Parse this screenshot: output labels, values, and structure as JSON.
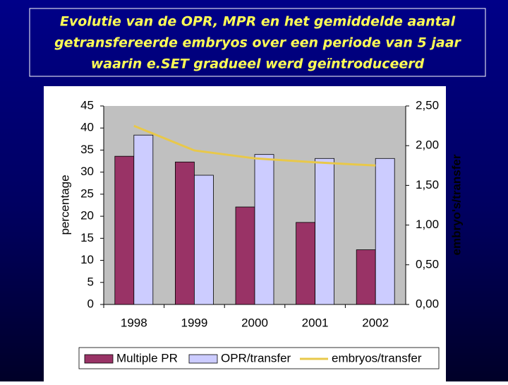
{
  "chart_data": {
    "type": "bar",
    "title": [
      "Evolutie van de OPR, MPR en het gemiddelde aantal",
      "getransfereerde embryos over een periode van 5 jaar",
      "waarin e.SET gradueel werd geïntroduceerd"
    ],
    "categories": [
      "1998",
      "1999",
      "2000",
      "2001",
      "2002"
    ],
    "series": [
      {
        "name": "Multiple PR",
        "color": "#993366",
        "values": [
          33.6,
          32.3,
          22.1,
          18.6,
          12.4
        ]
      },
      {
        "name": "OPR/transfer",
        "color": "#ccccff",
        "values": [
          38.4,
          29.3,
          34.0,
          33.1,
          33.1
        ]
      },
      {
        "name": "embryos/transfer",
        "color": "#e8c84a",
        "axis": "y2",
        "type": "line",
        "values": [
          2.25,
          1.94,
          1.84,
          1.79,
          1.75
        ]
      }
    ],
    "ylabel": "percentage",
    "y2label": "embryo's/transfer",
    "ylim": [
      0,
      45
    ],
    "yticks": [
      0,
      5,
      10,
      15,
      20,
      25,
      30,
      35,
      40,
      45
    ],
    "y2lim": [
      0,
      2.5
    ],
    "y2ticks": [
      {
        "value": 0,
        "label": "0,00"
      },
      {
        "value": 0.5,
        "label": "0,50"
      },
      {
        "value": 1,
        "label": "1,00"
      },
      {
        "value": 1.5,
        "label": "1,50"
      },
      {
        "value": 2,
        "label": "2,00"
      },
      {
        "value": 2.5,
        "label": "2,50"
      }
    ],
    "grid": false,
    "legend": "bottom"
  }
}
